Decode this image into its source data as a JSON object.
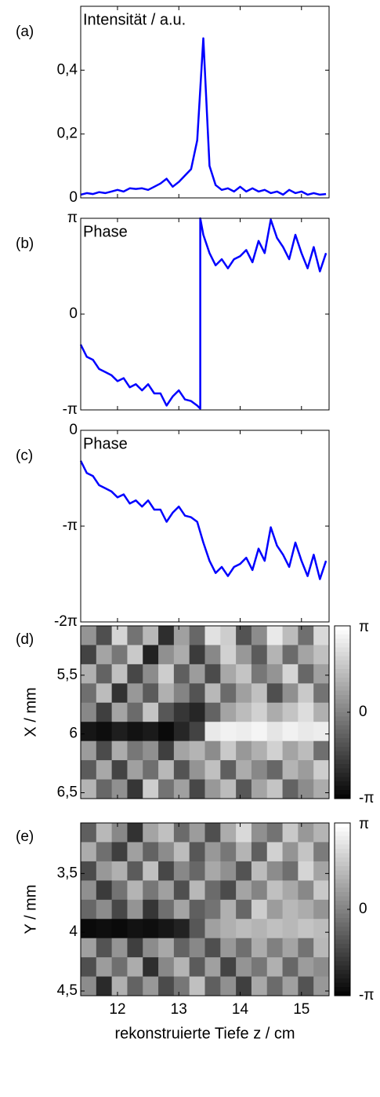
{
  "chart_data": [
    {
      "type": "line",
      "panel_label": "(a)",
      "title": "Intensität / a.u.",
      "color": "#0000ff",
      "x": [
        11.4,
        11.5,
        11.6,
        11.7,
        11.8,
        11.9,
        12.0,
        12.1,
        12.2,
        12.3,
        12.4,
        12.5,
        12.6,
        12.7,
        12.8,
        12.9,
        13.0,
        13.1,
        13.2,
        13.3,
        13.4,
        13.5,
        13.6,
        13.7,
        13.8,
        13.9,
        14.0,
        14.1,
        14.2,
        14.3,
        14.4,
        14.5,
        14.6,
        14.7,
        14.8,
        14.9,
        15.0,
        15.1,
        15.2,
        15.3,
        15.4
      ],
      "values": [
        0.01,
        0.015,
        0.012,
        0.018,
        0.015,
        0.02,
        0.025,
        0.02,
        0.03,
        0.028,
        0.03,
        0.025,
        0.035,
        0.045,
        0.06,
        0.035,
        0.05,
        0.07,
        0.09,
        0.18,
        0.5,
        0.1,
        0.04,
        0.025,
        0.03,
        0.02,
        0.035,
        0.02,
        0.03,
        0.02,
        0.025,
        0.015,
        0.02,
        0.01,
        0.025,
        0.015,
        0.02,
        0.01,
        0.015,
        0.01,
        0.012
      ],
      "xlim": [
        11.4,
        15.45
      ],
      "xticks": [
        12,
        13,
        14,
        15
      ],
      "xtick_labels": false,
      "ylim": [
        0,
        0.6
      ],
      "yticks": [
        0,
        {
          "value": 0.2,
          "label": "0,2"
        },
        {
          "value": 0.4,
          "label": "0,4"
        }
      ]
    },
    {
      "type": "line",
      "panel_label": "(b)",
      "title": "Phase",
      "color": "#0000ff",
      "x": [
        11.4,
        11.5,
        11.6,
        11.7,
        11.8,
        11.9,
        12.0,
        12.1,
        12.2,
        12.3,
        12.4,
        12.5,
        12.6,
        12.7,
        12.8,
        12.9,
        13.0,
        13.1,
        13.2,
        13.3,
        13.35,
        13.35,
        13.4,
        13.5,
        13.6,
        13.7,
        13.8,
        13.9,
        14.0,
        14.1,
        14.2,
        14.3,
        14.4,
        14.5,
        14.6,
        14.7,
        14.8,
        14.9,
        15.0,
        15.1,
        15.2,
        15.3,
        15.4
      ],
      "values": [
        -1.0,
        -1.4,
        -1.5,
        -1.8,
        -1.9,
        -2.0,
        -2.2,
        -2.1,
        -2.4,
        -2.3,
        -2.5,
        -2.3,
        -2.6,
        -2.6,
        -3.0,
        -2.7,
        -2.5,
        -2.8,
        -2.85,
        -3.0,
        -3.1,
        3.1416,
        2.6,
        2.0,
        1.6,
        1.8,
        1.5,
        1.8,
        1.9,
        2.1,
        1.7,
        2.4,
        2.0,
        3.1,
        2.5,
        2.2,
        1.8,
        2.6,
        2.0,
        1.5,
        2.2,
        1.4,
        2.0
      ],
      "xlim": [
        11.4,
        15.45
      ],
      "xticks": [
        12,
        13,
        14,
        15
      ],
      "xtick_labels": false,
      "ylim": [
        -3.1416,
        3.1416
      ],
      "yticks": [
        {
          "value": -3.1416,
          "label": "-π"
        },
        0,
        {
          "value": 3.1416,
          "label": "π"
        }
      ]
    },
    {
      "type": "line",
      "panel_label": "(c)",
      "title": "Phase",
      "color": "#0000ff",
      "x": [
        11.4,
        11.5,
        11.6,
        11.7,
        11.8,
        11.9,
        12.0,
        12.1,
        12.2,
        12.3,
        12.4,
        12.5,
        12.6,
        12.7,
        12.8,
        12.9,
        13.0,
        13.1,
        13.2,
        13.3,
        13.4,
        13.5,
        13.6,
        13.7,
        13.8,
        13.9,
        14.0,
        14.1,
        14.2,
        14.3,
        14.4,
        14.5,
        14.6,
        14.7,
        14.8,
        14.9,
        15.0,
        15.1,
        15.2,
        15.3,
        15.4
      ],
      "values": [
        -1.0,
        -1.4,
        -1.5,
        -1.8,
        -1.9,
        -2.0,
        -2.2,
        -2.1,
        -2.4,
        -2.3,
        -2.5,
        -2.3,
        -2.6,
        -2.6,
        -3.0,
        -2.7,
        -2.5,
        -2.8,
        -2.85,
        -3.0,
        -3.68,
        -4.28,
        -4.68,
        -4.48,
        -4.78,
        -4.48,
        -4.38,
        -4.18,
        -4.58,
        -3.88,
        -4.28,
        -3.18,
        -3.78,
        -4.08,
        -4.48,
        -3.68,
        -4.28,
        -4.78,
        -4.08,
        -4.88,
        -4.28
      ],
      "xlim": [
        11.4,
        15.45
      ],
      "xticks": [
        12,
        13,
        14,
        15
      ],
      "xtick_labels": false,
      "ylim": [
        -6.2832,
        0
      ],
      "yticks": [
        {
          "value": -6.2832,
          "label": "-2π"
        },
        {
          "value": -3.1416,
          "label": "-π"
        },
        0
      ]
    },
    {
      "type": "heatmap",
      "panel_label": "(d)",
      "ylabel": "X / mm",
      "xlim": [
        11.4,
        15.45
      ],
      "xticks": [
        12,
        13,
        14,
        15
      ],
      "xtick_labels": false,
      "ylim": [
        5.08,
        6.55
      ],
      "yticks": [
        {
          "value": 5.5,
          "label": "5,5"
        },
        6,
        {
          "value": 6.5,
          "label": "6,5"
        }
      ],
      "zlim": [
        -3.1416,
        3.1416
      ],
      "zticks": [
        {
          "value": 3.1416,
          "label": "π"
        },
        0,
        {
          "value": -3.1416,
          "label": "-π"
        }
      ],
      "z": [
        [
          0.5,
          -1.2,
          2.1,
          -0.3,
          1.4,
          -2.0,
          0.8,
          -0.6,
          2.4,
          1.9,
          -1.1,
          0.3,
          2.6,
          1.5,
          -0.4,
          2.2
        ],
        [
          -1.5,
          0.9,
          -0.2,
          1.8,
          -2.3,
          0.4,
          1.1,
          -1.7,
          0.2,
          2.0,
          0.6,
          -0.9,
          1.3,
          -0.5,
          0.9,
          1.6
        ],
        [
          1.2,
          -0.7,
          1.6,
          -1.4,
          0.3,
          1.9,
          -0.8,
          0.7,
          -1.3,
          1.0,
          1.7,
          -0.2,
          0.5,
          2.1,
          -0.6,
          0.8
        ],
        [
          -0.4,
          1.5,
          -1.9,
          0.6,
          -0.9,
          1.2,
          0.1,
          -1.1,
          1.4,
          -0.5,
          0.8,
          1.6,
          -1.2,
          0.4,
          1.8,
          -0.3
        ],
        [
          0.2,
          -1.6,
          0.9,
          -0.5,
          1.7,
          -1.0,
          -1.8,
          -2.2,
          -0.7,
          0.9,
          1.5,
          2.0,
          1.1,
          1.7,
          2.3,
          1.2
        ],
        [
          -2.6,
          -2.8,
          -2.4,
          -2.7,
          -2.5,
          -2.9,
          -2.2,
          -1.5,
          2.6,
          2.8,
          2.7,
          2.9,
          2.5,
          2.8,
          2.6,
          2.7
        ],
        [
          0.7,
          -1.3,
          1.1,
          -0.2,
          0.4,
          -1.6,
          0.9,
          1.3,
          0.3,
          1.8,
          0.6,
          1.2,
          2.0,
          0.9,
          1.5,
          -0.4
        ],
        [
          -0.9,
          1.0,
          -1.5,
          0.8,
          -0.4,
          1.4,
          -1.1,
          0.5,
          1.6,
          -0.8,
          1.1,
          0.2,
          -0.6,
          1.3,
          0.7,
          1.9
        ],
        [
          1.3,
          -0.6,
          0.4,
          -1.8,
          1.9,
          -0.3,
          0.8,
          -1.4,
          0.6,
          1.5,
          -1.0,
          0.9,
          1.7,
          -0.7,
          0.3,
          1.1
        ]
      ]
    },
    {
      "type": "heatmap",
      "panel_label": "(e)",
      "ylabel": "Y / mm",
      "xlabel": "rekonstruierte Tiefe z / cm",
      "xlim": [
        11.4,
        15.45
      ],
      "xticks": [
        12,
        13,
        14,
        15
      ],
      "xtick_labels": true,
      "ylim": [
        3.07,
        4.54
      ],
      "yticks": [
        {
          "value": 3.5,
          "label": "3,5"
        },
        4,
        {
          "value": 4.5,
          "label": "4,5"
        }
      ],
      "zlim": [
        -3.1416,
        3.1416
      ],
      "zticks": [
        {
          "value": 3.1416,
          "label": "π"
        },
        0,
        {
          "value": -3.1416,
          "label": "-π"
        }
      ],
      "z": [
        [
          -0.8,
          1.4,
          0.2,
          -1.9,
          0.9,
          1.6,
          -0.5,
          0.7,
          -1.2,
          1.1,
          2.2,
          0.4,
          -0.3,
          1.8,
          0.6,
          1.3
        ],
        [
          1.1,
          -0.4,
          -1.6,
          0.8,
          -0.7,
          0.3,
          1.5,
          -1.0,
          0.6,
          -0.2,
          1.3,
          -0.8,
          2.0,
          0.5,
          1.7,
          -0.1
        ],
        [
          -1.3,
          0.6,
          1.2,
          -0.9,
          1.6,
          -1.4,
          0.2,
          -0.6,
          1.0,
          0.4,
          -1.1,
          1.5,
          0.3,
          -0.4,
          2.1,
          0.9
        ],
        [
          0.4,
          -1.7,
          -0.3,
          1.3,
          -0.2,
          0.8,
          -1.2,
          1.4,
          -0.5,
          -1.3,
          0.9,
          0.1,
          1.6,
          1.0,
          0.2,
          1.8
        ],
        [
          -0.6,
          0.3,
          -1.4,
          0.5,
          -1.8,
          -0.4,
          0.9,
          -0.8,
          -0.3,
          1.2,
          -0.6,
          1.9,
          0.7,
          1.4,
          1.1,
          0.5
        ],
        [
          -2.9,
          -2.8,
          -2.9,
          -2.7,
          -2.8,
          -2.6,
          -2.3,
          -1.0,
          0.8,
          1.2,
          1.5,
          1.3,
          1.6,
          1.4,
          1.7,
          1.5
        ],
        [
          0.8,
          -1.1,
          0.5,
          -1.6,
          0.3,
          1.0,
          -0.7,
          0.2,
          -1.2,
          0.6,
          -0.4,
          1.1,
          0.0,
          0.9,
          -0.3,
          1.4
        ],
        [
          -1.2,
          0.7,
          -0.4,
          1.1,
          -2.0,
          0.2,
          1.3,
          -0.9,
          0.8,
          -1.5,
          0.5,
          -0.2,
          1.2,
          -0.6,
          0.7,
          0.3
        ],
        [
          0.3,
          -2.1,
          1.2,
          -0.7,
          0.6,
          -1.3,
          -0.2,
          1.6,
          -0.8,
          0.4,
          -1.6,
          1.0,
          -0.5,
          0.8,
          -1.1,
          0.6
        ]
      ]
    }
  ]
}
